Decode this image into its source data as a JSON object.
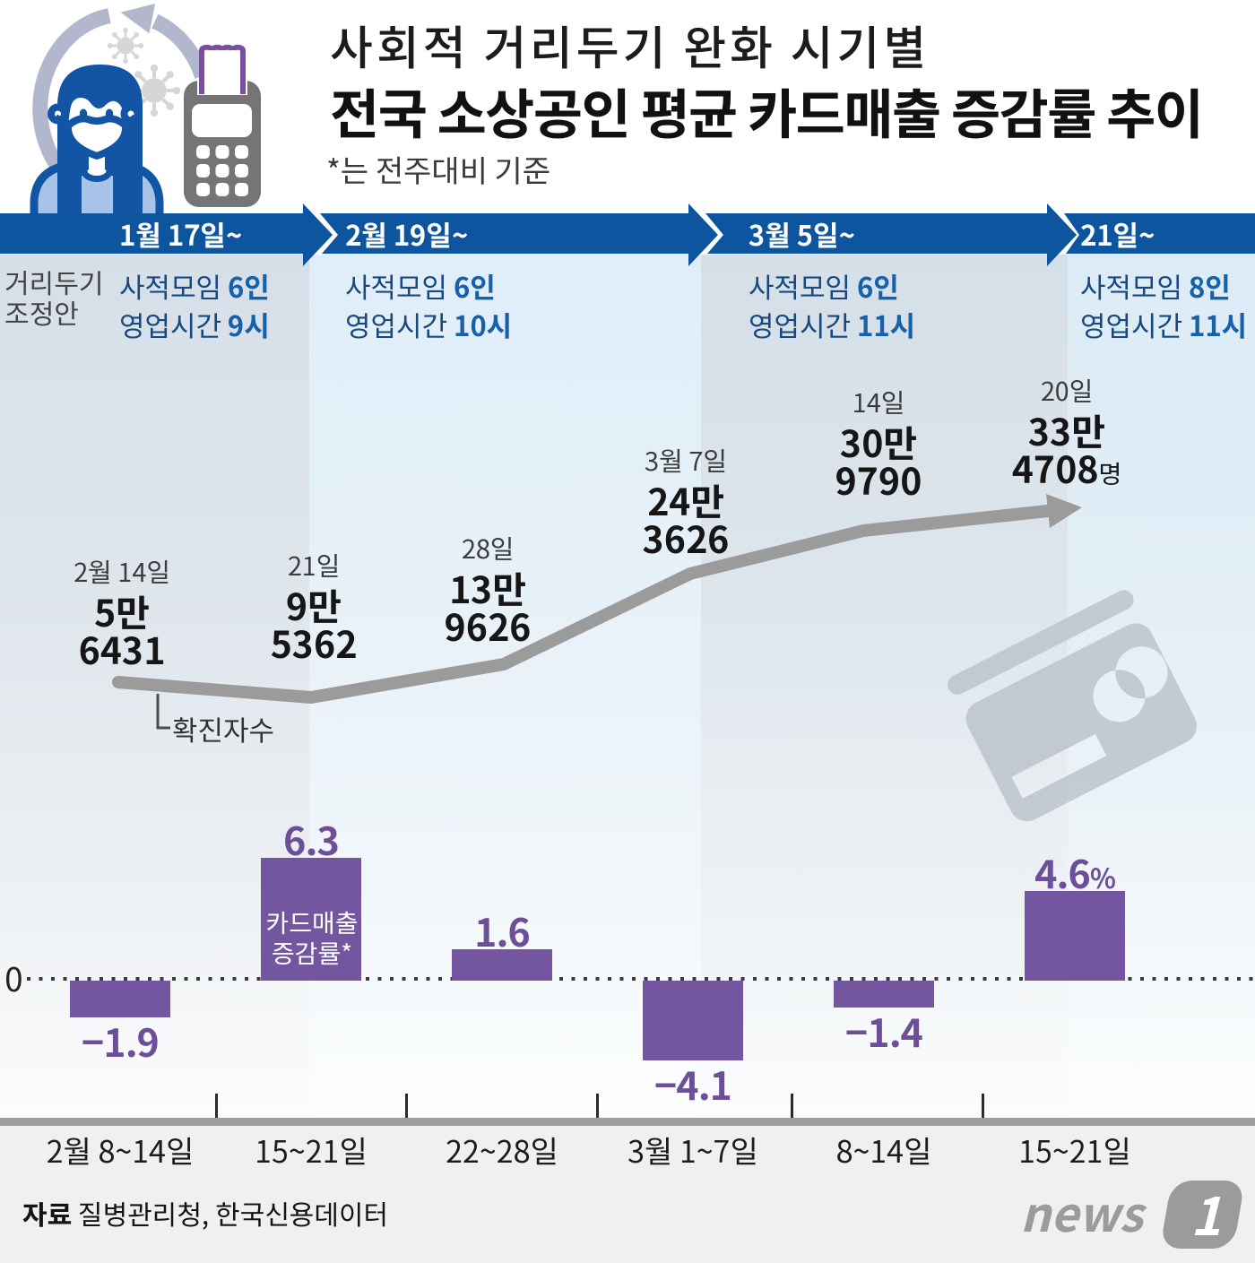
{
  "title": {
    "line1": "사회적 거리두기 완화 시기별",
    "line2": "전국 소상공인 평균 카드매출 증감률 추이",
    "note": "*는 전주대비 기준"
  },
  "header_illustration": {
    "icons": [
      "cycle-arrow",
      "virus",
      "masked-person",
      "card-terminal",
      "receipt-card"
    ]
  },
  "timeline": {
    "row_label": {
      "line1": "거리두기",
      "line2": "조정안"
    },
    "periods": [
      {
        "date": "1월 17일~",
        "rule1_label": "사적모임",
        "rule1_value": "6인",
        "rule2_label": "영업시간",
        "rule2_value": "9시"
      },
      {
        "date": "2월 19일~",
        "rule1_label": "사적모임",
        "rule1_value": "6인",
        "rule2_label": "영업시간",
        "rule2_value": "10시"
      },
      {
        "date": "3월 5일~",
        "rule1_label": "사적모임",
        "rule1_value": "6인",
        "rule2_label": "영업시간",
        "rule2_value": "11시"
      },
      {
        "date": "21일~",
        "rule1_label": "사적모임",
        "rule1_value": "8인",
        "rule2_label": "영업시간",
        "rule2_value": "11시"
      }
    ]
  },
  "chart_data": {
    "type": "line+bar",
    "title": "사회적 거리두기 완화 시기별 전국 소상공인 평균 카드매출 증감률 추이",
    "categories": [
      "2월 8~14일",
      "15~21일",
      "22~28일",
      "3월 1~7일",
      "8~14일",
      "15~21일"
    ],
    "line_series": {
      "name": "확진자수",
      "values": [
        56431,
        95362,
        139626,
        243626,
        309790,
        334708
      ],
      "labels": [
        {
          "date": "2월 14일",
          "l1": "5만",
          "l2": "6431",
          "suffix": ""
        },
        {
          "date": "21일",
          "l1": "9만",
          "l2": "5362",
          "suffix": ""
        },
        {
          "date": "28일",
          "l1": "13만",
          "l2": "9626",
          "suffix": ""
        },
        {
          "date": "3월 7일",
          "l1": "24만",
          "l2": "3626",
          "suffix": ""
        },
        {
          "date": "14일",
          "l1": "30만",
          "l2": "9790",
          "suffix": ""
        },
        {
          "date": "20일",
          "l1": "33만",
          "l2": "4708",
          "suffix": "명"
        }
      ]
    },
    "bar_series": {
      "name": "카드매출 증감률*",
      "in_bar_label": {
        "line1": "카드매출",
        "line2": "증감률*"
      },
      "values": [
        -1.9,
        6.3,
        1.6,
        -4.1,
        -1.4,
        4.6
      ],
      "labels": [
        "−1.9",
        "6.3",
        "1.6",
        "−4.1",
        "−1.4",
        "4.6"
      ],
      "last_label_suffix": "%"
    },
    "zero_label": "0",
    "baseline": "dotted",
    "ylim_note": "unlabeled stylized axes"
  },
  "footer": {
    "source_label": "자료",
    "source_text": "질병관리청, 한국신용데이터",
    "logo_text": "news",
    "logo_number": "1"
  },
  "colors": {
    "band_blue": "#0c57a3",
    "rule_text_navy": "#17497f",
    "rule_value_blue": "#1561aa",
    "bar_purple": "#74559f",
    "line_gray": "#9b9b9b",
    "card_gray": "#b8c0ca",
    "footer_bg": "#f0f0f0",
    "logo_gray": "#9b9b9b"
  }
}
